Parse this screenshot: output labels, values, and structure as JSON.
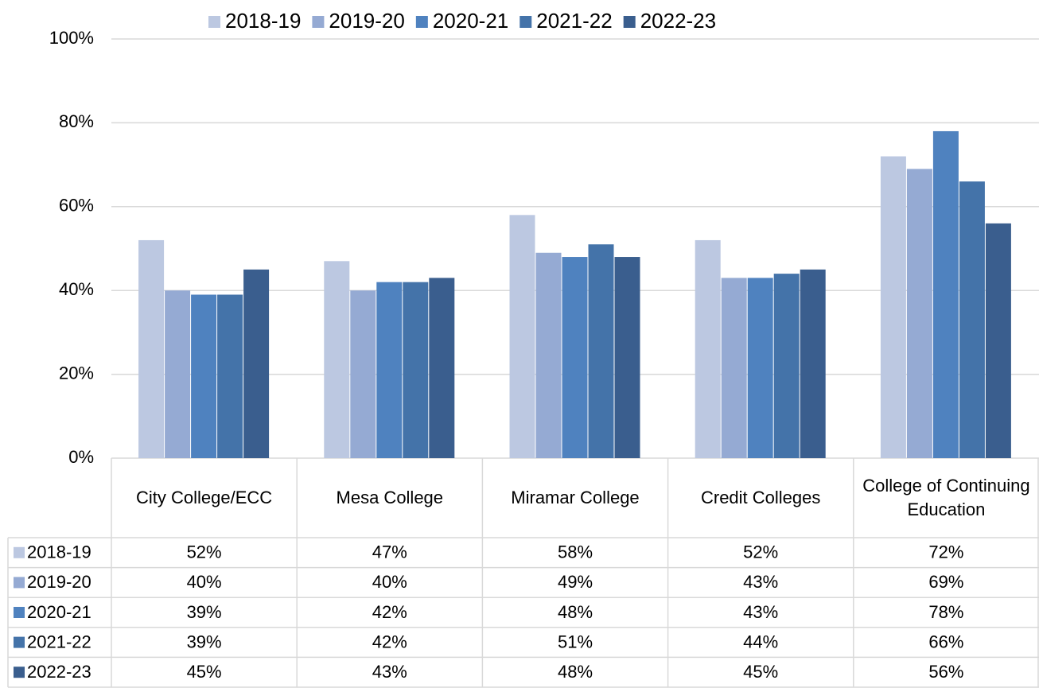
{
  "chart_data": {
    "type": "bar",
    "categories": [
      "City College/ECC",
      "Mesa College",
      "Miramar College",
      "Credit Colleges",
      "College of Continuing Education"
    ],
    "series": [
      {
        "name": "2018-19",
        "color": "#bcc8e1",
        "values": [
          52,
          47,
          58,
          52,
          72
        ],
        "value_labels": [
          "52%",
          "47%",
          "58%",
          "52%",
          "72%"
        ]
      },
      {
        "name": "2019-20",
        "color": "#95aad3",
        "values": [
          40,
          40,
          49,
          43,
          69
        ],
        "value_labels": [
          "40%",
          "40%",
          "49%",
          "43%",
          "69%"
        ]
      },
      {
        "name": "2020-21",
        "color": "#4f82bf",
        "values": [
          39,
          42,
          48,
          43,
          78
        ],
        "value_labels": [
          "39%",
          "42%",
          "48%",
          "43%",
          "78%"
        ]
      },
      {
        "name": "2021-22",
        "color": "#4473a9",
        "values": [
          39,
          42,
          51,
          44,
          66
        ],
        "value_labels": [
          "39%",
          "42%",
          "51%",
          "44%",
          "66%"
        ]
      },
      {
        "name": "2022-23",
        "color": "#3a5e8e",
        "values": [
          45,
          43,
          48,
          45,
          56
        ],
        "value_labels": [
          "45%",
          "43%",
          "48%",
          "45%",
          "56%"
        ]
      }
    ],
    "ylim": [
      0,
      100
    ],
    "yticks": [
      {
        "value": 0,
        "label": "0%"
      },
      {
        "value": 20,
        "label": "20%"
      },
      {
        "value": 40,
        "label": "40%"
      },
      {
        "value": 60,
        "label": "60%"
      },
      {
        "value": 80,
        "label": "80%"
      },
      {
        "value": 100,
        "label": "100%"
      }
    ],
    "grid": true,
    "legend": "top"
  }
}
